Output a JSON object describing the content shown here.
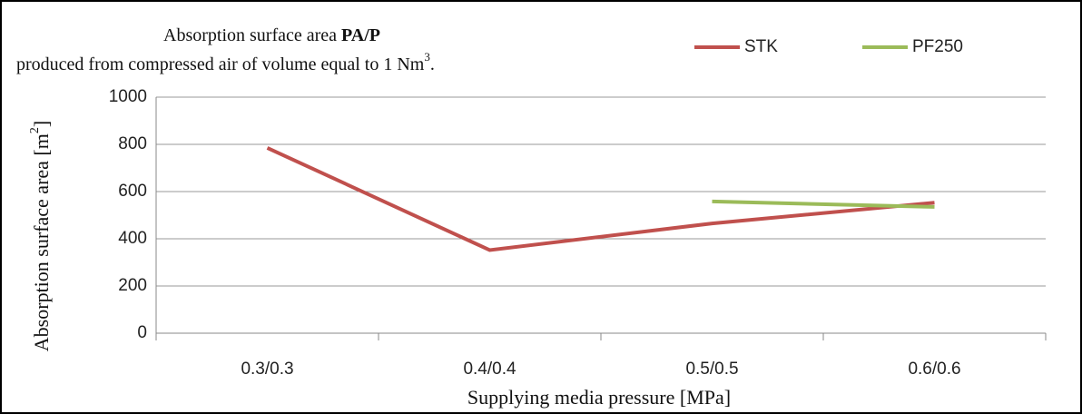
{
  "chart_data": {
    "type": "line",
    "title": [
      "Absorption surface area",
      "PA/P"
    ],
    "subtitle": [
      "produced from compressed air of volume equal to 1 Nm",
      "3",
      "."
    ],
    "x_label": "Supplying media pressure [MPa]",
    "y_label": [
      "Absorption surface area [m",
      "2",
      "]"
    ],
    "categories": [
      "0.3/0.3",
      "0.4/0.4",
      "0.5/0.5",
      "0.6/0.6"
    ],
    "series": [
      {
        "name": "STK",
        "color": "#c0504d",
        "values": [
          785,
          352,
          465,
          553
        ]
      },
      {
        "name": "PF250",
        "color": "#9bbb59",
        "values": [
          null,
          null,
          558,
          535
        ]
      }
    ],
    "ylim": [
      0,
      1000
    ],
    "yticks": [
      0,
      200,
      400,
      600,
      800,
      1000
    ],
    "grid": true,
    "legend": "top"
  }
}
